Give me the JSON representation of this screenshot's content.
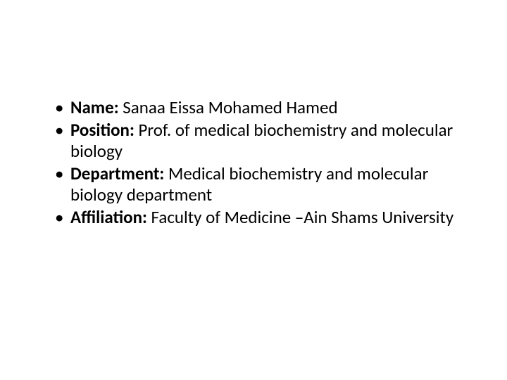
{
  "slide": {
    "background_color": "#ffffff",
    "text_color": "#000000",
    "font_family": "Calibri, Arial, sans-serif",
    "font_size_pt": 25,
    "line_height": 1.2,
    "bullets": [
      {
        "label": "Name:",
        "value": " Sanaa Eissa Mohamed Hamed"
      },
      {
        "label": "Position:",
        "value": " Prof. of medical biochemistry and molecular biology"
      },
      {
        "label": "Department:",
        "value": " Medical biochemistry and molecular biology department"
      },
      {
        "label": "Affiliation:",
        "value": " Faculty of Medicine –Ain Shams University"
      }
    ]
  }
}
